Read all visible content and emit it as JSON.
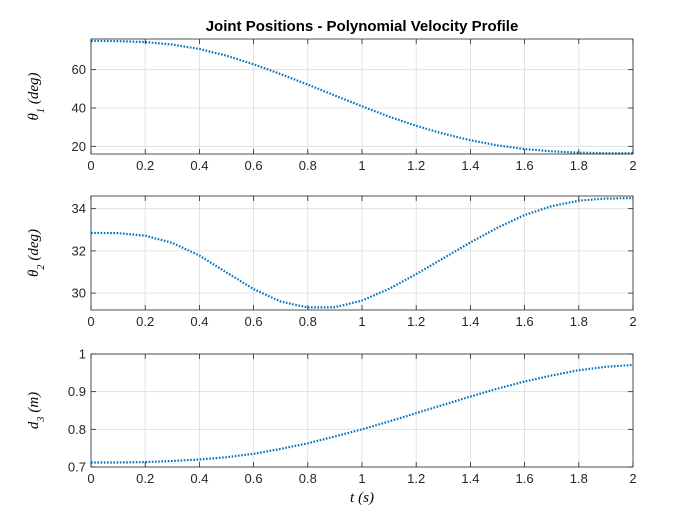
{
  "figure": {
    "title": "Joint Positions - Polynomial Velocity Profile"
  },
  "chart_data": [
    {
      "type": "line",
      "title": "Joint Positions - Polynomial Velocity Profile",
      "xlabel": "",
      "ylabel": "θ1 (deg)",
      "ylabel_parts": {
        "sym": "θ",
        "sub": "1",
        "unit": "(deg)"
      },
      "xlim": [
        0,
        2
      ],
      "ylim": [
        16,
        76
      ],
      "xticks": [
        0,
        0.2,
        0.4,
        0.6,
        0.8,
        1,
        1.2,
        1.4,
        1.6,
        1.8,
        2
      ],
      "yticks": [
        20,
        40,
        60
      ],
      "grid": true,
      "line_style": "dotted",
      "color": "#0072BD",
      "series": [
        {
          "x": [
            0,
            0.1,
            0.2,
            0.3,
            0.4,
            0.5,
            0.6,
            0.7,
            0.8,
            0.9,
            1.0,
            1.1,
            1.2,
            1.3,
            1.4,
            1.5,
            1.6,
            1.7,
            1.8,
            1.9,
            2.0
          ],
          "values": [
            75,
            74.9,
            74.4,
            73.1,
            70.8,
            67.3,
            62.8,
            57.7,
            52.2,
            46.5,
            40.9,
            35.5,
            30.7,
            26.6,
            23.2,
            20.5,
            18.6,
            17.4,
            16.7,
            16.4,
            16.4
          ]
        }
      ]
    },
    {
      "type": "line",
      "title": "",
      "xlabel": "",
      "ylabel": "θ2 (deg)",
      "ylabel_parts": {
        "sym": "θ",
        "sub": "2",
        "unit": "(deg)"
      },
      "xlim": [
        0,
        2
      ],
      "ylim": [
        29.2,
        34.6
      ],
      "xticks": [
        0,
        0.2,
        0.4,
        0.6,
        0.8,
        1,
        1.2,
        1.4,
        1.6,
        1.8,
        2
      ],
      "yticks": [
        30,
        32,
        34
      ],
      "grid": true,
      "line_style": "dotted",
      "color": "#0072BD",
      "series": [
        {
          "x": [
            0,
            0.1,
            0.2,
            0.3,
            0.4,
            0.5,
            0.6,
            0.7,
            0.8,
            0.9,
            1.0,
            1.1,
            1.2,
            1.3,
            1.4,
            1.5,
            1.6,
            1.7,
            1.8,
            1.9,
            2.0
          ],
          "values": [
            32.85,
            32.84,
            32.72,
            32.38,
            31.78,
            30.98,
            30.19,
            29.6,
            29.32,
            29.33,
            29.65,
            30.2,
            30.9,
            31.65,
            32.4,
            33.1,
            33.7,
            34.12,
            34.38,
            34.48,
            34.5
          ]
        }
      ]
    },
    {
      "type": "line",
      "title": "",
      "xlabel": "t (s)",
      "xlabel_parts": {
        "sym": "t",
        "unit": "(s)"
      },
      "ylabel": "d3 (m)",
      "ylabel_parts": {
        "sym": "d",
        "sub": "3",
        "unit": "(m)"
      },
      "xlim": [
        0,
        2
      ],
      "ylim": [
        0.7,
        1
      ],
      "xticks": [
        0,
        0.2,
        0.4,
        0.6,
        0.8,
        1,
        1.2,
        1.4,
        1.6,
        1.8,
        2
      ],
      "yticks": [
        0.7,
        0.8,
        0.9,
        1
      ],
      "grid": true,
      "line_style": "dotted",
      "color": "#0072BD",
      "series": [
        {
          "x": [
            0,
            0.1,
            0.2,
            0.3,
            0.4,
            0.5,
            0.6,
            0.7,
            0.8,
            0.9,
            1.0,
            1.1,
            1.2,
            1.3,
            1.4,
            1.5,
            1.6,
            1.7,
            1.8,
            1.9,
            2.0
          ],
          "values": [
            0.712,
            0.712,
            0.713,
            0.716,
            0.72,
            0.726,
            0.735,
            0.748,
            0.763,
            0.781,
            0.8,
            0.821,
            0.843,
            0.865,
            0.887,
            0.908,
            0.927,
            0.943,
            0.957,
            0.966,
            0.971
          ]
        }
      ]
    }
  ]
}
